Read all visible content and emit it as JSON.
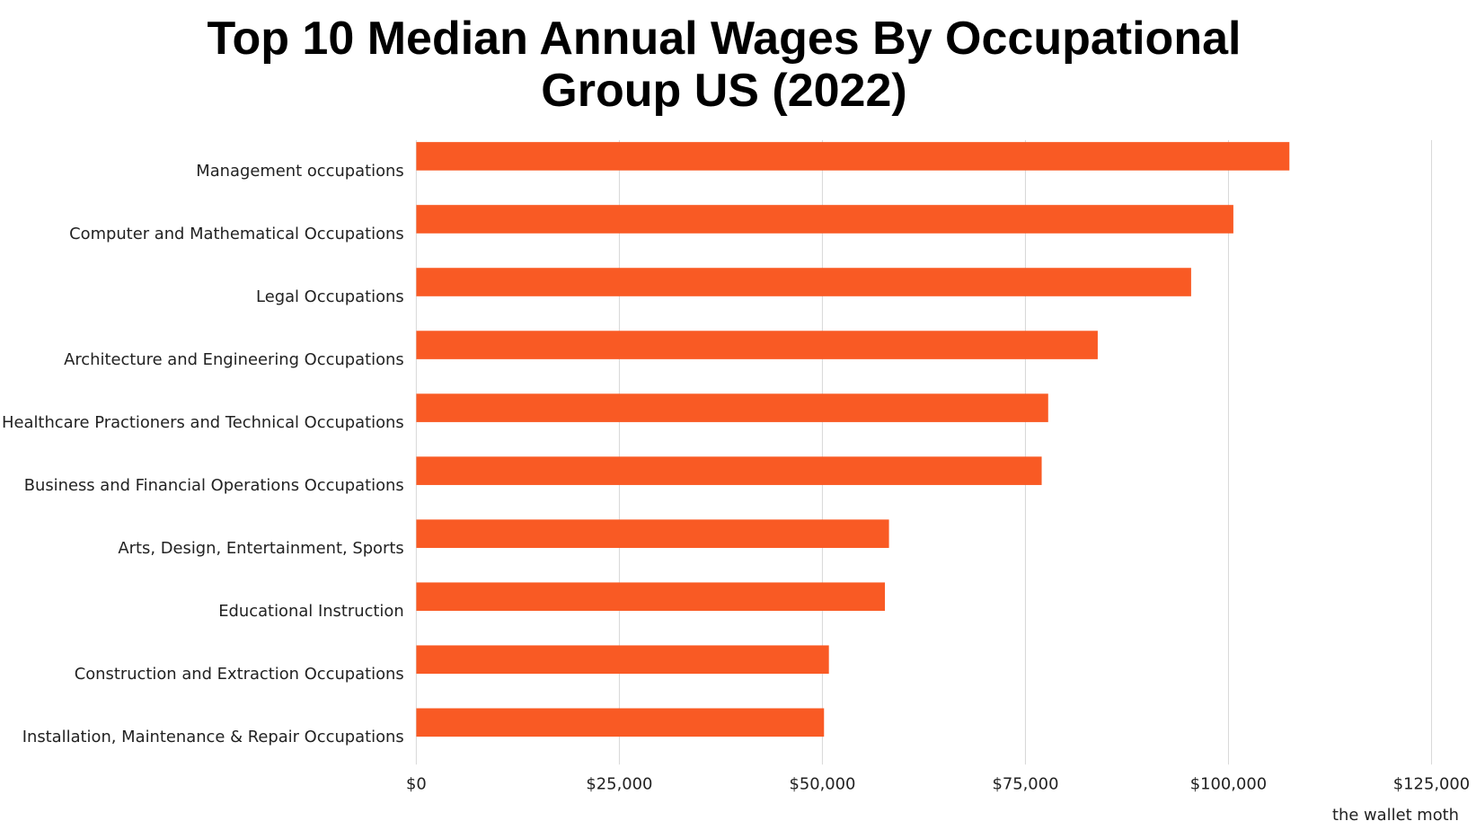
{
  "chart_data": {
    "type": "bar",
    "orientation": "horizontal",
    "title": "Top 10 Median Annual Wages By Occupational Group US (2022)",
    "categories": [
      "Management occupations",
      "Computer and Mathematical Occupations",
      "Legal Occupations",
      "Architecture and Engineering Occupations",
      "Healthcare Practioners and Technical Occupations",
      "Business and Financial Operations Occupations",
      "Arts, Design, Entertainment, Sports",
      "Educational Instruction",
      "Construction and Extraction Occupations",
      "Installation, Maintenance & Repair Occupations"
    ],
    "values": [
      107500,
      100600,
      95400,
      83900,
      77800,
      77000,
      58200,
      57700,
      50800,
      50200
    ],
    "color": "#f95a24",
    "xlim": [
      0,
      125000
    ],
    "xticks": [
      {
        "value": 0,
        "label": "$0"
      },
      {
        "value": 25000,
        "label": "$25,000"
      },
      {
        "value": 50000,
        "label": "$50,000"
      },
      {
        "value": 75000,
        "label": "$75,000"
      },
      {
        "value": 100000,
        "label": "$100,000"
      },
      {
        "value": 125000,
        "label": "$125,000"
      }
    ],
    "grid": true
  },
  "watermark": "the wallet moth"
}
